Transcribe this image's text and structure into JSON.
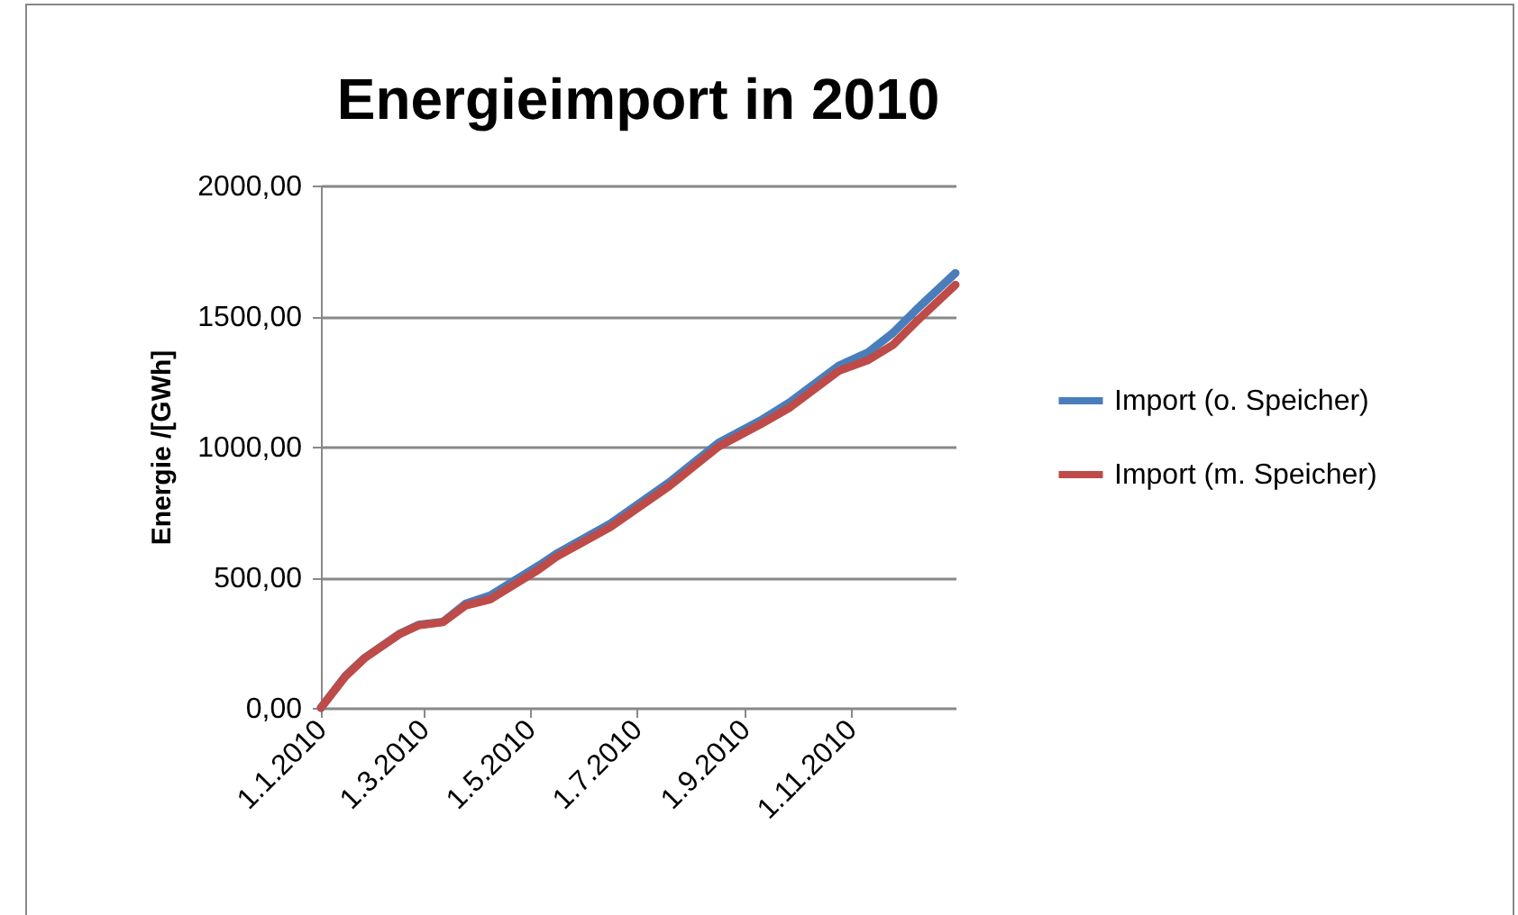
{
  "chart_data": {
    "type": "line",
    "title": "Energieimport in 2010",
    "ylabel": "Energie /[GWh]",
    "x": [
      "2010-01-01",
      "2010-01-15",
      "2010-01-26",
      "2010-02-15",
      "2010-02-26",
      "2010-03-12",
      "2010-03-25",
      "2010-04-08",
      "2010-05-06",
      "2010-05-16",
      "2010-06-16",
      "2010-07-20",
      "2010-08-17",
      "2010-09-10",
      "2010-09-27",
      "2010-10-25",
      "2010-11-11",
      "2010-11-25",
      "2010-12-09",
      "2010-12-31"
    ],
    "series": [
      {
        "name": "Import (o. Speicher)",
        "color": "#4a7ebb",
        "values": [
          0,
          122,
          191,
          283,
          318,
          329,
          399,
          430,
          545,
          590,
          705,
          865,
          1015,
          1100,
          1170,
          1310,
          1362,
          1435,
          1528,
          1665
        ]
      },
      {
        "name": "Import (m. Speicher)",
        "color": "#be4b48",
        "values": [
          0,
          120,
          190,
          282,
          316,
          328,
          392,
          415,
          530,
          578,
          692,
          850,
          1000,
          1085,
          1150,
          1290,
          1332,
          1389,
          1482,
          1620
        ]
      }
    ],
    "xlim": [
      "2010-01-01",
      "2010-12-31"
    ],
    "xticks": [
      {
        "value": "2010-01-01",
        "label": "1.1.2010"
      },
      {
        "value": "2010-03-01",
        "label": "1.3.2010"
      },
      {
        "value": "2010-05-01",
        "label": "1.5.2010"
      },
      {
        "value": "2010-07-01",
        "label": "1.7.2010"
      },
      {
        "value": "2010-09-01",
        "label": "1.9.2010"
      },
      {
        "value": "2010-11-01",
        "label": "1.11.2010"
      }
    ],
    "ylim": [
      0,
      2000
    ],
    "yticks": [
      {
        "value": 0,
        "label": "0,00"
      },
      {
        "value": 500,
        "label": "500,00"
      },
      {
        "value": 1000,
        "label": "1000,00"
      },
      {
        "value": 1500,
        "label": "1500,00"
      },
      {
        "value": 2000,
        "label": "2000,00"
      }
    ],
    "grid": "y",
    "legend": "right",
    "marker": "none",
    "line_style": "solid"
  }
}
